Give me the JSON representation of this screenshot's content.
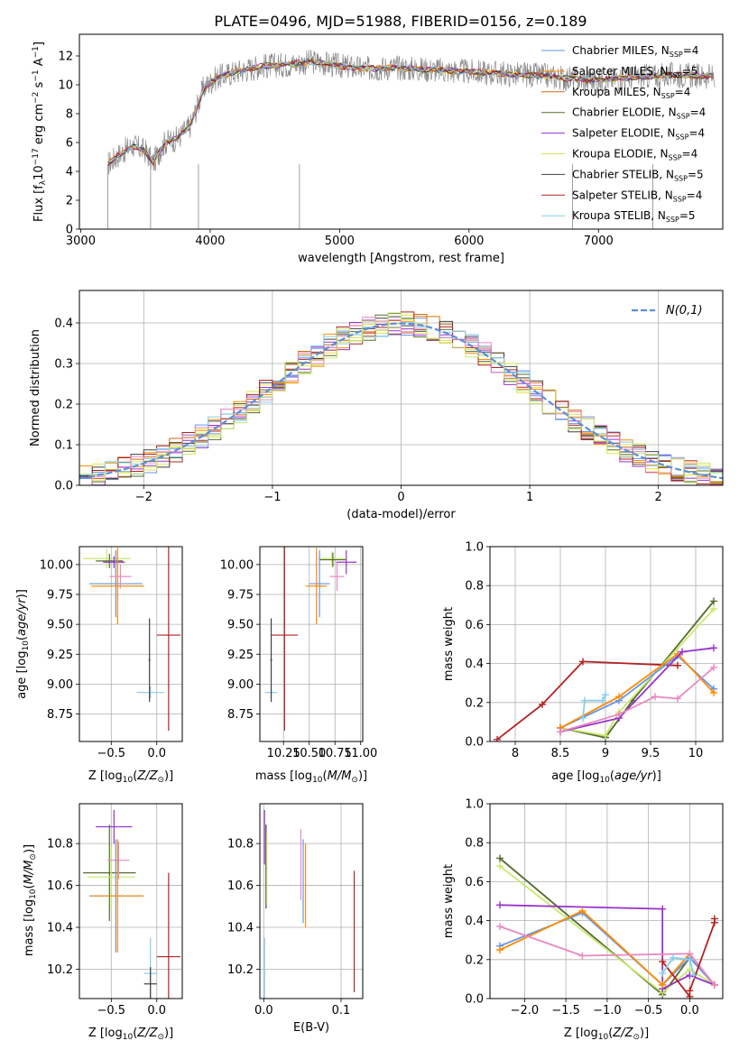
{
  "figure": {
    "title": "PLATE=0496, MJD=51988, FIBERID=0156, z=0.189"
  },
  "chart_data": [
    {
      "type": "line",
      "name": "spectrum",
      "xlabel": "wavelength [Angstrom, rest frame]",
      "ylabel": "Flux [f_λ 10^-17 erg cm^-2 s^-1 A^-1]",
      "xlim": [
        2990,
        7960
      ],
      "ylim": [
        0,
        13.5
      ],
      "xticks": [
        3000,
        4000,
        5000,
        6000,
        7000
      ],
      "yticks": [
        0,
        2,
        4,
        6,
        8,
        10,
        12
      ],
      "legend_position": "top-right",
      "observed_color": "#888888",
      "data_x": [
        3210,
        3300,
        3400,
        3500,
        3560,
        3650,
        3750,
        3850,
        3950,
        4050,
        4200,
        4400,
        4600,
        4800,
        5000,
        5200,
        5400,
        5600,
        5800,
        6000,
        6200,
        6400,
        6600,
        6800,
        7000,
        7200,
        7400,
        7600,
        7800
      ],
      "data_y": [
        4.5,
        5.2,
        5.8,
        5.4,
        4.6,
        6.0,
        6.3,
        7.2,
        9.8,
        10.5,
        10.9,
        11.3,
        11.4,
        11.6,
        11.3,
        11.1,
        11.2,
        11.1,
        11.0,
        10.9,
        10.8,
        10.7,
        10.6,
        10.4,
        10.3,
        10.5,
        10.6,
        10.7,
        10.6
      ],
      "noise_amplitude": 0.9,
      "series": [
        {
          "label": "Chabrier MILES, N",
          "sub": "SSP",
          "n": "=4",
          "color": "#6495ED"
        },
        {
          "label": "Salpeter MILES, N",
          "sub": "SSP",
          "n": "=5",
          "color": "#FF8C00"
        },
        {
          "label": "Kroupa MILES, N",
          "sub": "SSP",
          "n": "=4",
          "color": "#D2691E"
        },
        {
          "label": "Chabrier ELODIE, N",
          "sub": "SSP",
          "n": "=4",
          "color": "#556B2F"
        },
        {
          "label": "Salpeter ELODIE, N",
          "sub": "SSP",
          "n": "=4",
          "color": "#9932CC"
        },
        {
          "label": "Kroupa ELODIE, N",
          "sub": "SSP",
          "n": "=4",
          "color": "#E3E349"
        },
        {
          "label": "Chabrier STELIB, N",
          "sub": "SSP",
          "n": "=5",
          "color": "#404040"
        },
        {
          "label": "Salpeter STELIB, N",
          "sub": "SSP",
          "n": "=4",
          "color": "#B22222"
        },
        {
          "label": "Kroupa STELIB, N",
          "sub": "SSP",
          "n": "=5",
          "color": "#87CEEB"
        }
      ]
    },
    {
      "type": "histogram",
      "name": "residuals",
      "xlabel": "(data-model)/error",
      "ylabel": "Normed distribution",
      "xlim": [
        -2.5,
        2.5
      ],
      "ylim": [
        0,
        0.48
      ],
      "xticks": [
        -2,
        -1,
        0,
        1,
        2
      ],
      "yticks": [
        0.0,
        0.1,
        0.2,
        0.3,
        0.4
      ],
      "grid": true,
      "bin_width": 0.1,
      "legend_position": "top-right",
      "reference_label": "N(0,1)",
      "reference_color": "#5B8FD6",
      "bins": [
        -2.5,
        -2.4,
        -2.3,
        -2.2,
        -2.1,
        -2.0,
        -1.9,
        -1.8,
        -1.7,
        -1.6,
        -1.5,
        -1.4,
        -1.3,
        -1.2,
        -1.1,
        -1.0,
        -0.9,
        -0.8,
        -0.7,
        -0.6,
        -0.5,
        -0.4,
        -0.3,
        -0.2,
        -0.1,
        0.0,
        0.1,
        0.2,
        0.3,
        0.4,
        0.5,
        0.6,
        0.7,
        0.8,
        0.9,
        1.0,
        1.1,
        1.2,
        1.3,
        1.4,
        1.5,
        1.6,
        1.7,
        1.8,
        1.9,
        2.0,
        2.1,
        2.2,
        2.3,
        2.4
      ],
      "series_colors": [
        "#6495ED",
        "#FF8C00",
        "#D2691E",
        "#556B2F",
        "#9932CC",
        "#E3E349",
        "#404040",
        "#B22222",
        "#87CEEB",
        "#E78AC3",
        "#C8E86C"
      ],
      "jitter_amplitude": 0.03
    },
    {
      "type": "errorbar",
      "name": "age-vs-metallicity",
      "xlabel": "Z [log10(Z/Z⊙)]",
      "ylabel": "age [log10(age/yr)]",
      "xlim": [
        -0.85,
        0.28
      ],
      "ylim": [
        8.52,
        10.15
      ],
      "xticks": [
        -0.5,
        0.0
      ],
      "xticklabels": [
        "−0.5",
        "0.0"
      ],
      "yticks": [
        8.75,
        9.0,
        9.25,
        9.5,
        9.75,
        10.0
      ],
      "grid": true,
      "points": [
        {
          "x": -0.55,
          "y": 10.05,
          "xerr": 0.26,
          "yerr": 0.08,
          "color": "#C8E86C"
        },
        {
          "x": -0.52,
          "y": 10.03,
          "xerr": 0.15,
          "yerr": 0.06,
          "color": "#556B2F"
        },
        {
          "x": -0.47,
          "y": 10.02,
          "xerr": 0.12,
          "yerr": 0.05,
          "color": "#9932CC"
        },
        {
          "x": -0.45,
          "y": 9.84,
          "xerr": 0.29,
          "yerr": 0.28,
          "color": "#6495ED"
        },
        {
          "x": -0.43,
          "y": 9.82,
          "xerr": 0.29,
          "yerr": 0.32,
          "color": "#FF8C00"
        },
        {
          "x": -0.4,
          "y": 9.9,
          "xerr": 0.12,
          "yerr": 0.1,
          "color": "#E78AC3"
        },
        {
          "x": -0.07,
          "y": 8.93,
          "xerr": 0.15,
          "yerr": 0.05,
          "color": "#87CEEB"
        },
        {
          "x": -0.08,
          "y": 9.2,
          "xerr": 0.01,
          "yerr": 0.35,
          "color": "#404040"
        },
        {
          "x": 0.13,
          "y": 9.41,
          "xerr": 0.13,
          "yerr": 0.8,
          "color": "#B22222"
        }
      ]
    },
    {
      "type": "errorbar",
      "name": "age-vs-mass",
      "xlabel": "mass [log10(M/M⊙)]",
      "ylabel": "",
      "xlim": [
        10.02,
        11.02
      ],
      "ylim": [
        8.52,
        10.15
      ],
      "xticks": [
        10.25,
        10.5,
        10.75,
        11.0
      ],
      "xticklabels": [
        "10.25",
        "10.50",
        "10.75",
        "11.00"
      ],
      "yticks": [
        8.75,
        9.0,
        9.25,
        9.5,
        9.75,
        10.0
      ],
      "grid": true,
      "points": [
        {
          "x": 10.72,
          "y": 10.05,
          "xerr": 0.13,
          "yerr": 0.06,
          "color": "#C8E86C"
        },
        {
          "x": 10.73,
          "y": 10.04,
          "xerr": 0.13,
          "yerr": 0.06,
          "color": "#556B2F"
        },
        {
          "x": 10.86,
          "y": 10.02,
          "xerr": 0.1,
          "yerr": 0.1,
          "color": "#9932CC"
        },
        {
          "x": 10.6,
          "y": 9.84,
          "xerr": 0.1,
          "yerr": 0.28,
          "color": "#6495ED"
        },
        {
          "x": 10.57,
          "y": 9.82,
          "xerr": 0.1,
          "yerr": 0.32,
          "color": "#FF8C00"
        },
        {
          "x": 10.77,
          "y": 9.9,
          "xerr": 0.07,
          "yerr": 0.12,
          "color": "#E78AC3"
        },
        {
          "x": 10.13,
          "y": 8.93,
          "xerr": 0.06,
          "yerr": 0.05,
          "color": "#87CEEB"
        },
        {
          "x": 10.13,
          "y": 9.2,
          "xerr": 0.01,
          "yerr": 0.35,
          "color": "#404040"
        },
        {
          "x": 10.26,
          "y": 9.41,
          "xerr": 0.13,
          "yerr": 0.8,
          "color": "#B22222"
        }
      ]
    },
    {
      "type": "line",
      "name": "mass-weight-vs-age",
      "xlabel": "age [log10(age/yr)]",
      "ylabel": "mass weight",
      "xlim": [
        7.72,
        10.3
      ],
      "ylim": [
        0,
        1.0
      ],
      "xticks": [
        8.0,
        8.5,
        9.0,
        9.5,
        10.0
      ],
      "yticks": [
        0.0,
        0.2,
        0.4,
        0.6,
        0.8,
        1.0
      ],
      "grid": true,
      "series": [
        {
          "color": "#B22222",
          "x": [
            7.8,
            8.3,
            8.75,
            9.8
          ],
          "y": [
            0.01,
            0.19,
            0.41,
            0.39
          ]
        },
        {
          "color": "#556B2F",
          "x": [
            8.5,
            9.0,
            9.3,
            10.2
          ],
          "y": [
            0.07,
            0.02,
            0.21,
            0.72
          ]
        },
        {
          "color": "#C8E86C",
          "x": [
            8.5,
            9.0,
            9.15,
            10.2
          ],
          "y": [
            0.07,
            0.03,
            0.15,
            0.68
          ]
        },
        {
          "color": "#6495ED",
          "x": [
            8.5,
            9.15,
            9.8,
            10.2
          ],
          "y": [
            0.07,
            0.21,
            0.44,
            0.27
          ]
        },
        {
          "color": "#FF8C00",
          "x": [
            8.5,
            9.15,
            9.8,
            10.2
          ],
          "y": [
            0.07,
            0.23,
            0.45,
            0.25
          ]
        },
        {
          "color": "#9932CC",
          "x": [
            8.5,
            9.15,
            9.85,
            10.2
          ],
          "y": [
            0.05,
            0.12,
            0.46,
            0.48
          ]
        },
        {
          "color": "#E78AC3",
          "x": [
            8.5,
            9.15,
            9.55,
            9.8,
            10.2
          ],
          "y": [
            0.05,
            0.14,
            0.23,
            0.22,
            0.38
          ]
        },
        {
          "color": "#87CEEB",
          "x": [
            8.75,
            8.77,
            8.97,
            9.0
          ],
          "y": [
            0.12,
            0.21,
            0.21,
            0.24
          ]
        }
      ]
    },
    {
      "type": "errorbar",
      "name": "mass-vs-metallicity",
      "xlabel": "Z [log10(Z/Z⊙)]",
      "ylabel": "mass [log10(M/M⊙)]",
      "xlim": [
        -0.85,
        0.28
      ],
      "ylim": [
        10.06,
        10.99
      ],
      "xticks": [
        -0.5,
        0.0
      ],
      "xticklabels": [
        "−0.5",
        "0.0"
      ],
      "yticks": [
        10.2,
        10.4,
        10.6,
        10.8
      ],
      "grid": true,
      "points": [
        {
          "x": -0.47,
          "y": 10.88,
          "xerr": 0.2,
          "yerr": 0.08,
          "color": "#9932CC"
        },
        {
          "x": -0.52,
          "y": 10.66,
          "xerr": 0.29,
          "yerr": 0.23,
          "color": "#556B2F"
        },
        {
          "x": -0.5,
          "y": 10.64,
          "xerr": 0.26,
          "yerr": 0.15,
          "color": "#C8E86C"
        },
        {
          "x": -0.42,
          "y": 10.72,
          "xerr": 0.12,
          "yerr": 0.09,
          "color": "#E78AC3"
        },
        {
          "x": -0.45,
          "y": 10.55,
          "xerr": 0.29,
          "yerr": 0.27,
          "color": "#6495ED"
        },
        {
          "x": -0.43,
          "y": 10.55,
          "xerr": 0.29,
          "yerr": 0.27,
          "color": "#FF8C00"
        },
        {
          "x": -0.07,
          "y": 10.18,
          "xerr": 0.07,
          "yerr": 0.17,
          "color": "#87CEEB"
        },
        {
          "x": -0.07,
          "y": 10.13,
          "xerr": 0.07,
          "yerr": 0.08,
          "color": "#404040"
        },
        {
          "x": 0.13,
          "y": 10.26,
          "xerr": 0.13,
          "yerr": 0.4,
          "color": "#B22222"
        }
      ]
    },
    {
      "type": "errorbar",
      "name": "mass-vs-extinction",
      "xlabel": "E(B-V)",
      "ylabel": "",
      "xlim": [
        -0.005,
        0.128
      ],
      "ylim": [
        10.06,
        10.99
      ],
      "xticks": [
        0.0,
        0.1
      ],
      "xticklabels": [
        "0.0",
        "0.1"
      ],
      "yticks": [
        10.2,
        10.4,
        10.6,
        10.8
      ],
      "grid": true,
      "points": [
        {
          "x": 0.001,
          "y": 10.83,
          "xerr": 0,
          "yerr": 0.13,
          "color": "#9932CC"
        },
        {
          "x": 0.003,
          "y": 10.69,
          "xerr": 0,
          "yerr": 0.2,
          "color": "#404040"
        },
        {
          "x": 0.004,
          "y": 10.68,
          "xerr": 0,
          "yerr": 0.17,
          "color": "#C8E86C"
        },
        {
          "x": 0.001,
          "y": 10.2,
          "xerr": 0,
          "yerr": 0.15,
          "color": "#87CEEB"
        },
        {
          "x": 0.048,
          "y": 10.7,
          "xerr": 0,
          "yerr": 0.17,
          "color": "#E78AC3"
        },
        {
          "x": 0.051,
          "y": 10.62,
          "xerr": 0,
          "yerr": 0.2,
          "color": "#6495ED"
        },
        {
          "x": 0.054,
          "y": 10.6,
          "xerr": 0,
          "yerr": 0.2,
          "color": "#FF8C00"
        },
        {
          "x": 0.117,
          "y": 10.38,
          "xerr": 0,
          "yerr": 0.29,
          "color": "#B22222"
        }
      ]
    },
    {
      "type": "line",
      "name": "mass-weight-vs-metallicity",
      "xlabel": "Z [log10(Z/Z⊙)]",
      "ylabel": "mass weight",
      "xlim": [
        -2.42,
        0.4
      ],
      "ylim": [
        0,
        1.0
      ],
      "xticks": [
        -2.0,
        -1.5,
        -1.0,
        -0.5,
        0.0
      ],
      "xticklabels": [
        "−2.0",
        "−1.5",
        "−1.0",
        "−0.5",
        "0.0"
      ],
      "yticks": [
        0.0,
        0.2,
        0.4,
        0.6,
        0.8,
        1.0
      ],
      "grid": true,
      "series": [
        {
          "color": "#556B2F",
          "x": [
            -2.3,
            -0.33,
            0.0,
            0.3
          ],
          "y": [
            0.72,
            0.02,
            0.21,
            0.07
          ]
        },
        {
          "color": "#C8E86C",
          "x": [
            -2.3,
            -0.33,
            0.0,
            0.3
          ],
          "y": [
            0.68,
            0.03,
            0.15,
            0.07
          ]
        },
        {
          "color": "#9932CC",
          "x": [
            -2.3,
            -0.33,
            -0.33,
            0.0,
            0.3
          ],
          "y": [
            0.48,
            0.46,
            0.05,
            0.12,
            0.07
          ]
        },
        {
          "color": "#6495ED",
          "x": [
            -2.3,
            -1.3,
            -0.33,
            0.0,
            0.3
          ],
          "y": [
            0.27,
            0.44,
            0.07,
            0.21,
            0.07
          ]
        },
        {
          "color": "#FF8C00",
          "x": [
            -2.3,
            -1.3,
            -0.33,
            0.0,
            0.3
          ],
          "y": [
            0.25,
            0.45,
            0.07,
            0.23,
            0.07
          ]
        },
        {
          "color": "#E78AC3",
          "x": [
            -2.3,
            -1.3,
            0.0,
            0.3
          ],
          "y": [
            0.37,
            0.22,
            0.23,
            0.07
          ]
        },
        {
          "color": "#B22222",
          "x": [
            -0.33,
            0.0,
            0.0,
            0.3,
            0.3
          ],
          "y": [
            0.19,
            0.01,
            0.04,
            0.39,
            0.41
          ]
        },
        {
          "color": "#87CEEB",
          "x": [
            -0.33,
            -0.2,
            0.0,
            0.05
          ],
          "y": [
            0.13,
            0.21,
            0.2,
            0.12
          ]
        }
      ]
    }
  ]
}
